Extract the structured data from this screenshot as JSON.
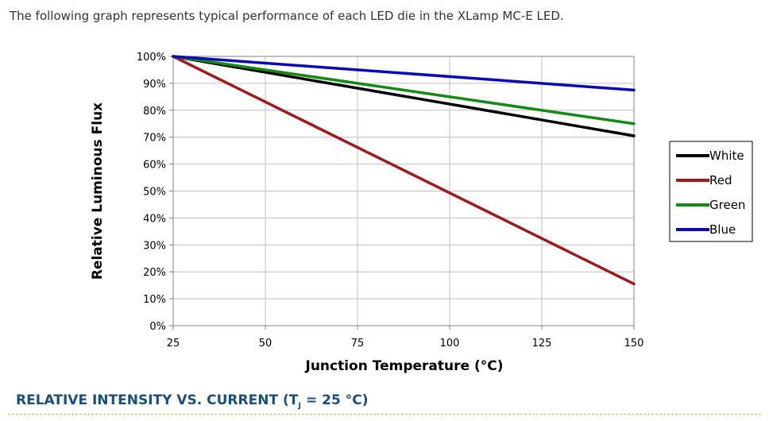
{
  "intro_text": "The following graph represents typical performance of each LED die in the XLamp MC-E LED.",
  "section_heading": {
    "prefix": "RELATIVE INTENSITY VS. CURRENT (T",
    "subscript": "J",
    "suffix": " = 25 °C)"
  },
  "chart_data": {
    "type": "line",
    "title": "",
    "xlabel": "Junction Temperature (°C)",
    "ylabel": "Relative Luminous Flux",
    "xlim": [
      25,
      150
    ],
    "ylim": [
      0,
      100
    ],
    "x_ticks": [
      25,
      50,
      75,
      100,
      125,
      150
    ],
    "y_ticks": [
      0,
      10,
      20,
      30,
      40,
      50,
      60,
      70,
      80,
      90,
      100
    ],
    "y_tick_labels": [
      "0%",
      "10%",
      "20%",
      "30%",
      "40%",
      "50%",
      "60%",
      "70%",
      "80%",
      "90%",
      "100%"
    ],
    "grid": true,
    "legend_position": "right",
    "series": [
      {
        "name": "White",
        "color": "#000000",
        "x": [
          25,
          150
        ],
        "y": [
          100,
          70.5
        ]
      },
      {
        "name": "Red",
        "color": "#a01a1a",
        "x": [
          25,
          150
        ],
        "y": [
          100,
          15.5
        ]
      },
      {
        "name": "Green",
        "color": "#138a13",
        "x": [
          25,
          150
        ],
        "y": [
          100,
          75
        ]
      },
      {
        "name": "Blue",
        "color": "#0a0ab4",
        "x": [
          25,
          150
        ],
        "y": [
          100,
          87.5
        ]
      }
    ]
  }
}
